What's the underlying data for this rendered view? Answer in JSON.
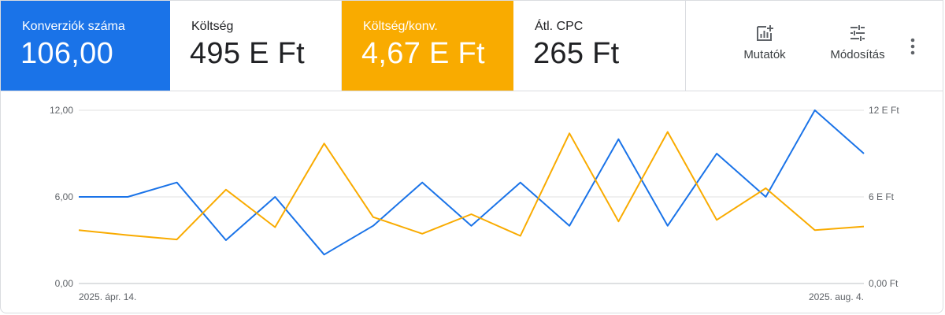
{
  "metrics": [
    {
      "label": "Konverziók száma",
      "value": "106,00",
      "color": "#1a73e8"
    },
    {
      "label": "Költség",
      "value": "495 E Ft"
    },
    {
      "label": "Költség/konv.",
      "value": "4,67 E Ft",
      "color": "#f9ab00"
    },
    {
      "label": "Átl. CPC",
      "value": "265 Ft"
    }
  ],
  "toolbar": {
    "metrics_label": "Mutatók",
    "modify_label": "Módosítás",
    "metrics_icon": "add-chart-icon",
    "modify_icon": "tune-icon",
    "more_icon": "more-vert-icon"
  },
  "chart_data": {
    "type": "line",
    "x_start_label": "2025. ápr. 14.",
    "x_end_label": "2025. aug. 4.",
    "y_left_ticks": [
      "0,00",
      "6,00",
      "12,00"
    ],
    "y_right_ticks": [
      "0,00 Ft",
      "6 E Ft",
      "12 E Ft"
    ],
    "ylim_left": [
      0,
      12
    ],
    "ylim_right": [
      0,
      12000
    ],
    "grid": true,
    "series": [
      {
        "axis": "left",
        "color": "#1a73e8",
        "values": [
          6,
          6,
          7,
          3,
          6,
          2,
          4,
          7,
          4,
          7,
          4,
          10,
          4,
          9,
          6,
          12,
          9
        ]
      },
      {
        "axis": "right",
        "color": "#f9ab00",
        "values": [
          3700,
          3350,
          3050,
          6500,
          3900,
          9700,
          4600,
          3450,
          4800,
          3300,
          10400,
          4300,
          10500,
          4400,
          6600,
          3700,
          3950
        ]
      }
    ]
  }
}
